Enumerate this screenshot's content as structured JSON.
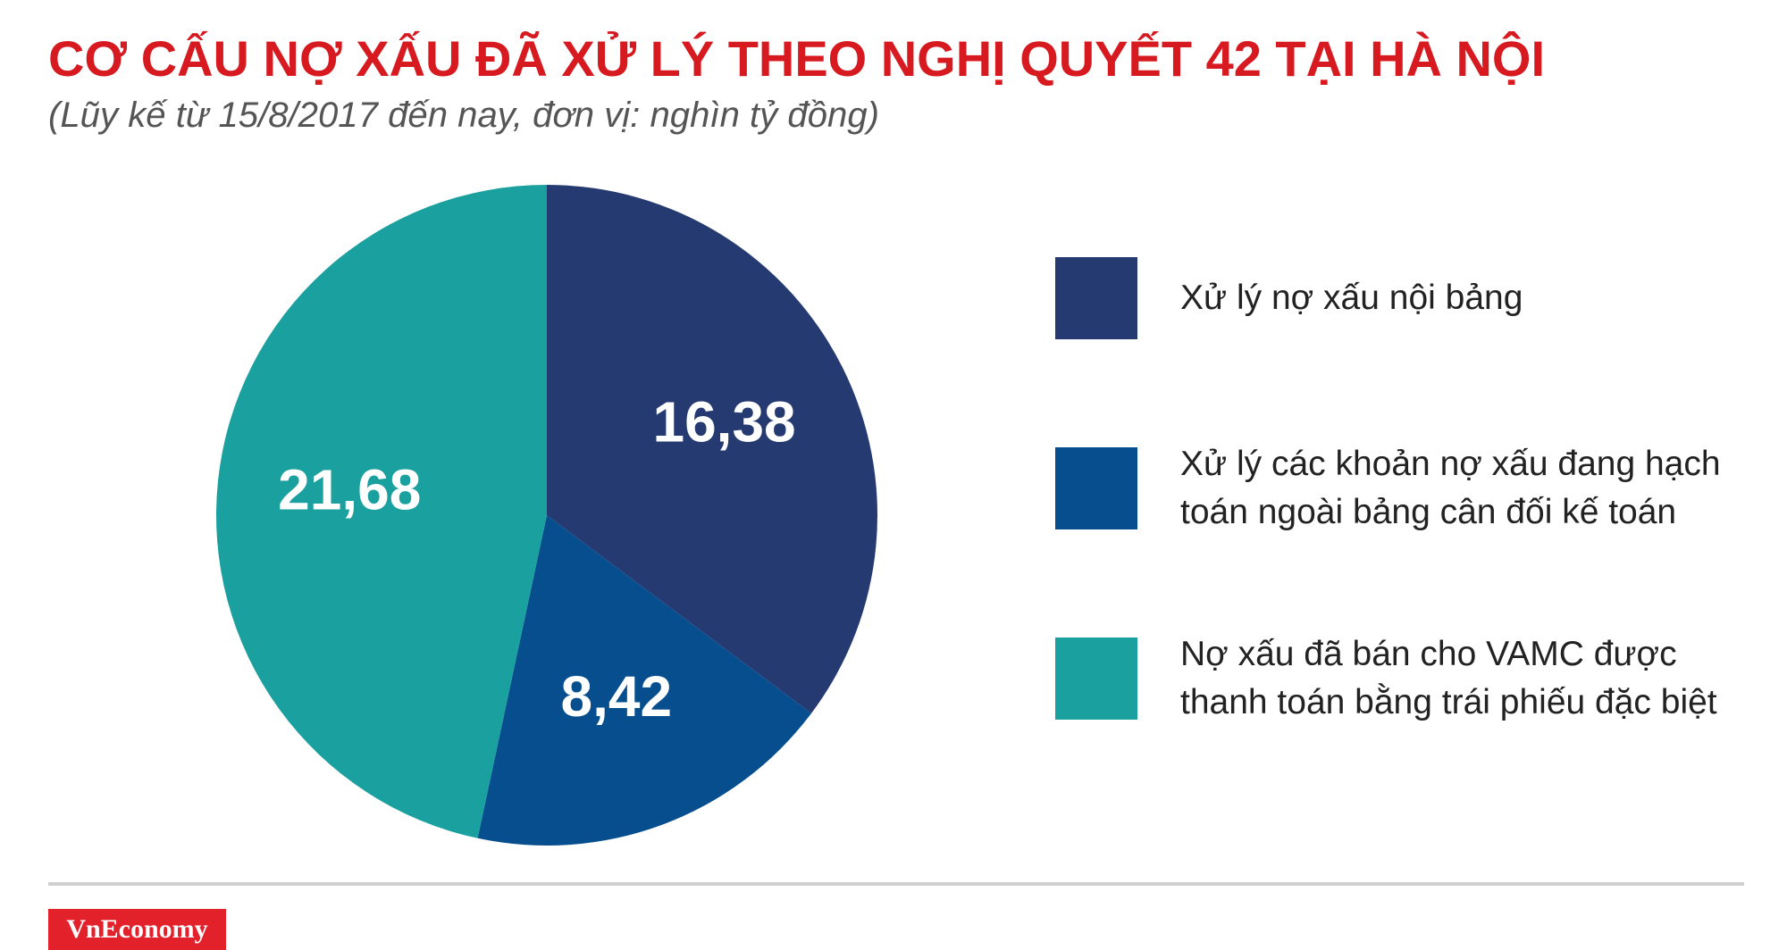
{
  "chart_data": {
    "type": "pie",
    "title": "CƠ CẤU NỢ XẤU ĐÃ XỬ LÝ THEO NGHỊ QUYẾT 42 TẠI HÀ NỘI",
    "subtitle": "(Lũy kế từ 15/8/2017 đến nay, đơn vị: nghìn tỷ đồng)",
    "categories": [
      "Xử lý nợ xấu nội bảng",
      "Xử lý các khoản nợ xấu đang hạch toán ngoài bảng cân đối kế toán",
      "Nợ xấu đã bán cho VAMC được thanh toán bằng trái phiếu đặc biệt"
    ],
    "values": [
      16.38,
      8.42,
      21.68
    ],
    "value_labels": [
      "16,38",
      "8,42",
      "21,68"
    ],
    "colors": [
      "#253a70",
      "#064e8e",
      "#1ba0a0"
    ],
    "legend": "right"
  },
  "brand": "VnEconomy"
}
